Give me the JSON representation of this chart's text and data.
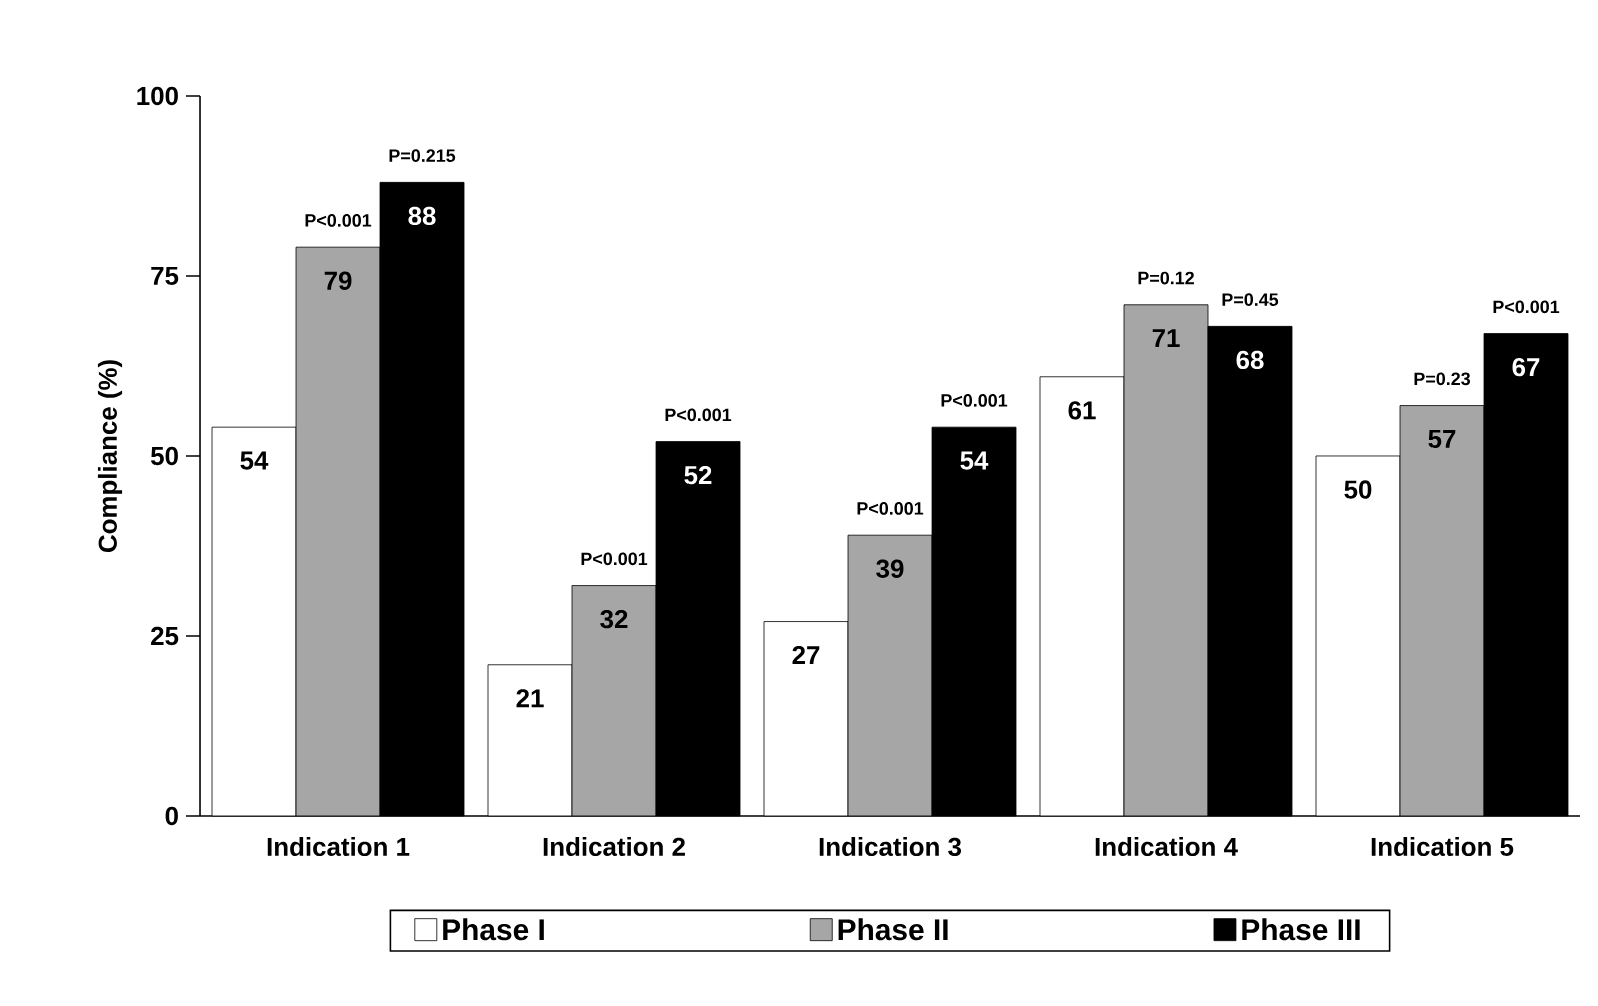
{
  "chart_data": {
    "type": "bar",
    "ylabel": "Compliance (%)",
    "categories": [
      "Indication 1",
      "Indication 2",
      "Indication 3",
      "Indication 4",
      "Indication 5"
    ],
    "series": [
      {
        "name": "Phase I",
        "color": "#ffffff",
        "values": [
          54,
          21,
          27,
          61,
          50
        ]
      },
      {
        "name": "Phase II",
        "color": "#a6a6a6",
        "values": [
          79,
          32,
          39,
          71,
          57
        ]
      },
      {
        "name": "Phase III",
        "color": "#000000",
        "values": [
          88,
          52,
          54,
          68,
          67
        ]
      }
    ],
    "ylim": [
      0,
      100
    ],
    "yticks": [
      0,
      25,
      50,
      75,
      100
    ],
    "grid": false,
    "legend": "bottom",
    "data_labels": true,
    "annotations": [
      "P<0.001",
      "P=0.215",
      "P<0.001",
      "P<0.001",
      "P<0.001",
      "P<0.001",
      "P=0.12",
      "P=0.45",
      "P=0.23",
      "P<0.001"
    ]
  }
}
